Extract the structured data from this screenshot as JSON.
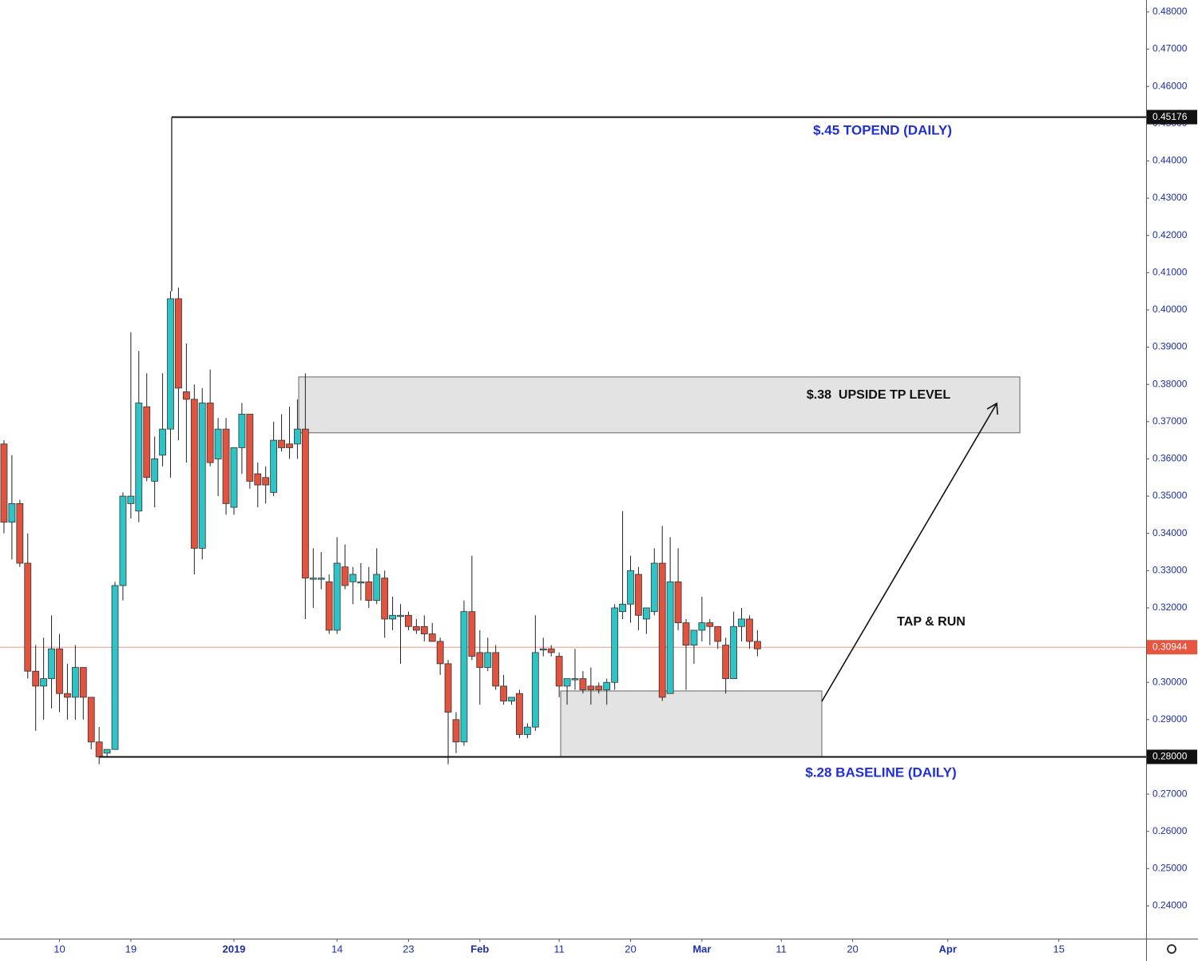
{
  "chart_data": {
    "type": "candlestick",
    "open": [
      0.364,
      0.343,
      0.348,
      0.332,
      0.303,
      0.299,
      0.301,
      0.309,
      0.297,
      0.296,
      0.304,
      0.296,
      0.284,
      0.281,
      0.282,
      0.326,
      0.348,
      0.346,
      0.374,
      0.354,
      0.361,
      0.368,
      0.403,
      0.378,
      0.376,
      0.336,
      0.375,
      0.36,
      0.368,
      0.347,
      0.363,
      0.372,
      0.356,
      0.355,
      0.351,
      0.365,
      0.364,
      0.364,
      0.368,
      0.328,
      0.328,
      0.327,
      0.314,
      0.331,
      0.327,
      0.327,
      0.327,
      0.322,
      0.328,
      0.317,
      0.318,
      0.318,
      0.315,
      0.315,
      0.313,
      0.311,
      0.305,
      0.29,
      0.284,
      0.319,
      0.308,
      0.304,
      0.308,
      0.299,
      0.295,
      0.297,
      0.286,
      0.288,
      0.309,
      0.309,
      0.307,
      0.299,
      0.301,
      0.301,
      0.299,
      0.299,
      0.298,
      0.3,
      0.319,
      0.321,
      0.329,
      0.317,
      0.319,
      0.332,
      0.297,
      0.327,
      0.316,
      0.31,
      0.314,
      0.316,
      0.315,
      0.31,
      0.301,
      0.315,
      0.317,
      0.311
    ],
    "high": [
      0.365,
      0.361,
      0.349,
      0.34,
      0.31,
      0.312,
      0.318,
      0.313,
      0.305,
      0.31,
      0.304,
      0.296,
      0.288,
      0.282,
      0.327,
      0.351,
      0.394,
      0.389,
      0.383,
      0.366,
      0.383,
      0.405,
      0.406,
      0.391,
      0.38,
      0.379,
      0.384,
      0.371,
      0.371,
      0.363,
      0.375,
      0.372,
      0.359,
      0.358,
      0.37,
      0.372,
      0.374,
      0.376,
      0.383,
      0.336,
      0.335,
      0.329,
      0.339,
      0.337,
      0.331,
      0.332,
      0.331,
      0.336,
      0.33,
      0.323,
      0.321,
      0.319,
      0.317,
      0.318,
      0.316,
      0.312,
      0.306,
      0.292,
      0.322,
      0.334,
      0.314,
      0.312,
      0.31,
      0.302,
      0.296,
      0.298,
      0.289,
      0.318,
      0.312,
      0.31,
      0.308,
      0.301,
      0.309,
      0.303,
      0.304,
      0.3,
      0.301,
      0.321,
      0.346,
      0.334,
      0.331,
      0.32,
      0.336,
      0.342,
      0.339,
      0.336,
      0.317,
      0.314,
      0.323,
      0.317,
      0.315,
      0.312,
      0.319,
      0.32,
      0.318,
      0.314
    ],
    "low": [
      0.34,
      0.333,
      0.331,
      0.301,
      0.287,
      0.29,
      0.293,
      0.292,
      0.29,
      0.29,
      0.29,
      0.282,
      0.278,
      0.28,
      0.282,
      0.322,
      0.344,
      0.343,
      0.354,
      0.347,
      0.358,
      0.355,
      0.365,
      0.359,
      0.329,
      0.333,
      0.358,
      0.35,
      0.345,
      0.345,
      0.356,
      0.352,
      0.347,
      0.348,
      0.35,
      0.362,
      0.36,
      0.36,
      0.317,
      0.32,
      0.325,
      0.313,
      0.313,
      0.325,
      0.321,
      0.322,
      0.32,
      0.321,
      0.312,
      0.314,
      0.305,
      0.314,
      0.313,
      0.311,
      0.311,
      0.302,
      0.278,
      0.281,
      0.283,
      0.306,
      0.294,
      0.303,
      0.298,
      0.294,
      0.294,
      0.285,
      0.285,
      0.287,
      0.307,
      0.307,
      0.296,
      0.294,
      0.298,
      0.297,
      0.294,
      0.297,
      0.294,
      0.298,
      0.317,
      0.316,
      0.314,
      0.313,
      0.318,
      0.295,
      0.297,
      0.314,
      0.298,
      0.305,
      0.311,
      0.31,
      0.309,
      0.297,
      0.301,
      0.311,
      0.309,
      0.307
    ],
    "close": [
      0.343,
      0.348,
      0.332,
      0.303,
      0.299,
      0.301,
      0.309,
      0.297,
      0.296,
      0.304,
      0.296,
      0.284,
      0.28,
      0.282,
      0.326,
      0.35,
      0.35,
      0.375,
      0.355,
      0.36,
      0.368,
      0.403,
      0.379,
      0.376,
      0.336,
      0.375,
      0.359,
      0.368,
      0.348,
      0.363,
      0.372,
      0.354,
      0.353,
      0.353,
      0.365,
      0.363,
      0.363,
      0.368,
      0.328,
      0.328,
      0.328,
      0.314,
      0.332,
      0.326,
      0.329,
      0.327,
      0.322,
      0.329,
      0.317,
      0.318,
      0.318,
      0.315,
      0.314,
      0.313,
      0.311,
      0.305,
      0.292,
      0.284,
      0.319,
      0.307,
      0.304,
      0.308,
      0.299,
      0.295,
      0.296,
      0.286,
      0.288,
      0.308,
      0.309,
      0.308,
      0.299,
      0.301,
      0.301,
      0.298,
      0.298,
      0.298,
      0.3,
      0.32,
      0.321,
      0.33,
      0.318,
      0.32,
      0.332,
      0.296,
      0.327,
      0.316,
      0.31,
      0.314,
      0.316,
      0.315,
      0.311,
      0.301,
      0.315,
      0.317,
      0.311,
      0.309
    ],
    "up_color": "#2ec4c6",
    "down_color": "#e0533f",
    "xlim": [
      -0.5,
      144
    ],
    "xticks": [
      {
        "value": 7,
        "label": "10"
      },
      {
        "value": 16,
        "label": "19"
      },
      {
        "value": 29,
        "label": "2019"
      },
      {
        "value": 42,
        "label": "14"
      },
      {
        "value": 51,
        "label": "23"
      },
      {
        "value": 60,
        "label": "Feb"
      },
      {
        "value": 70,
        "label": "11"
      },
      {
        "value": 79,
        "label": "20"
      },
      {
        "value": 88,
        "label": "Mar"
      },
      {
        "value": 98,
        "label": "11"
      },
      {
        "value": 107,
        "label": "20"
      },
      {
        "value": 119,
        "label": "Apr"
      },
      {
        "value": 133,
        "label": "15"
      }
    ],
    "ylim": [
      0.2312,
      0.4832
    ],
    "yticks": [
      {
        "value": 0.24,
        "label": "0.24000"
      },
      {
        "value": 0.25,
        "label": "0.25000"
      },
      {
        "value": 0.26,
        "label": "0.26000"
      },
      {
        "value": 0.27,
        "label": "0.27000"
      },
      {
        "value": 0.28,
        "label": "0.28000"
      },
      {
        "value": 0.29,
        "label": "0.29000"
      },
      {
        "value": 0.3,
        "label": "0.30000"
      },
      {
        "value": 0.31,
        "label": "0.31000"
      },
      {
        "value": 0.32,
        "label": "0.32000"
      },
      {
        "value": 0.33,
        "label": "0.33000"
      },
      {
        "value": 0.34,
        "label": "0.34000"
      },
      {
        "value": 0.35,
        "label": "0.35000"
      },
      {
        "value": 0.36,
        "label": "0.36000"
      },
      {
        "value": 0.37,
        "label": "0.37000"
      },
      {
        "value": 0.38,
        "label": "0.38000"
      },
      {
        "value": 0.39,
        "label": "0.39000"
      },
      {
        "value": 0.4,
        "label": "0.40000"
      },
      {
        "value": 0.41,
        "label": "0.41000"
      },
      {
        "value": 0.42,
        "label": "0.42000"
      },
      {
        "value": 0.43,
        "label": "0.43000"
      },
      {
        "value": 0.44,
        "label": "0.44000"
      },
      {
        "value": 0.45,
        "label": "0.45000"
      },
      {
        "value": 0.46,
        "label": "0.46000"
      },
      {
        "value": 0.47,
        "label": "0.47000"
      },
      {
        "value": 0.48,
        "label": "0.48000"
      }
    ],
    "levels": [
      {
        "value": 0.45176,
        "label": "0.45176"
      },
      {
        "value": 0.28,
        "label": "0.28000"
      }
    ],
    "last_price": {
      "value": 0.30944,
      "label": "0.30944"
    },
    "zones": [
      {
        "top": 0.382,
        "bottom": 0.367
      },
      {
        "top": 0.2977,
        "bottom": 0.28
      }
    ],
    "annotations": [
      "$.45 TOPEND (DAILY)",
      "$.38  UPSIDE TP LEVEL",
      "TAP & RUN",
      "$.28 BASELINE (DAILY)"
    ]
  }
}
